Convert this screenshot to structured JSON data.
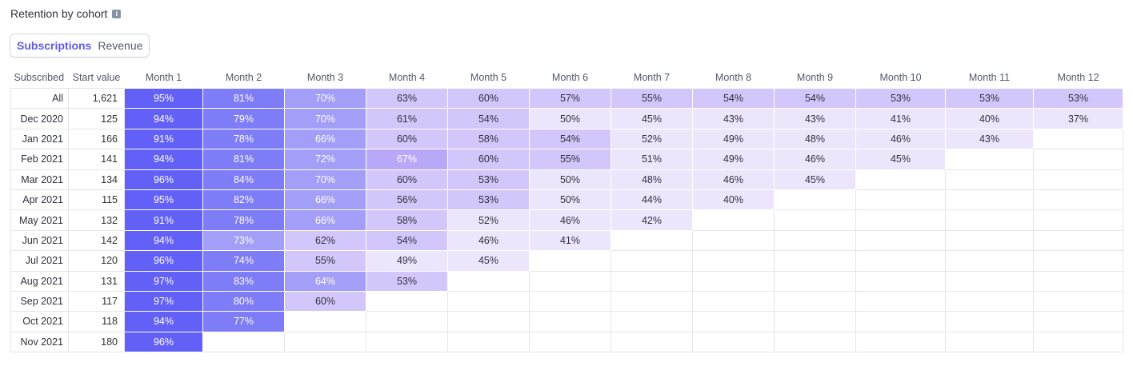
{
  "title": "Retention by cohort",
  "tabs": [
    "Subscriptions",
    "Revenue"
  ],
  "headers": [
    "Subscribed",
    "Start value",
    "Month 1",
    "Month 2",
    "Month 3",
    "Month 4",
    "Month 5",
    "Month 6",
    "Month 7",
    "Month 8",
    "Month 9",
    "Month 10",
    "Month 11",
    "Month 12"
  ],
  "colors": {
    "accent": "#5e5ce6",
    "l1": "#6360f8",
    "l2": "#7e7cf6",
    "l3": "#a39ef7",
    "l4": "#b9a8f7",
    "l5": "#d3c6fb",
    "l6": "#ece6fd"
  },
  "rows": [
    {
      "label": "All",
      "start": "1,621",
      "values": [
        "95%",
        "81%",
        "70%",
        "63%",
        "60%",
        "57%",
        "55%",
        "54%",
        "54%",
        "53%",
        "53%",
        "53%"
      ],
      "shades": [
        1,
        2,
        3,
        5,
        5,
        5,
        5,
        5,
        5,
        5,
        5,
        5
      ]
    },
    {
      "label": "Dec 2020",
      "start": "125",
      "values": [
        "94%",
        "79%",
        "70%",
        "61%",
        "54%",
        "50%",
        "45%",
        "43%",
        "43%",
        "41%",
        "40%",
        "37%"
      ],
      "shades": [
        1,
        2,
        3,
        5,
        5,
        6,
        6,
        6,
        6,
        6,
        6,
        6
      ]
    },
    {
      "label": "Jan 2021",
      "start": "166",
      "values": [
        "91%",
        "78%",
        "66%",
        "60%",
        "58%",
        "54%",
        "52%",
        "49%",
        "48%",
        "46%",
        "43%",
        ""
      ],
      "shades": [
        1,
        2,
        3,
        5,
        5,
        5,
        6,
        6,
        6,
        6,
        6,
        0
      ]
    },
    {
      "label": "Feb 2021",
      "start": "141",
      "values": [
        "94%",
        "81%",
        "72%",
        "67%",
        "60%",
        "55%",
        "51%",
        "49%",
        "46%",
        "45%",
        "",
        ""
      ],
      "shades": [
        1,
        2,
        3,
        4,
        5,
        5,
        6,
        6,
        6,
        6,
        0,
        0
      ]
    },
    {
      "label": "Mar 2021",
      "start": "134",
      "values": [
        "96%",
        "84%",
        "70%",
        "60%",
        "53%",
        "50%",
        "48%",
        "46%",
        "45%",
        "",
        "",
        ""
      ],
      "shades": [
        1,
        2,
        3,
        5,
        5,
        6,
        6,
        6,
        6,
        0,
        0,
        0
      ]
    },
    {
      "label": "Apr 2021",
      "start": "115",
      "values": [
        "95%",
        "82%",
        "66%",
        "56%",
        "53%",
        "50%",
        "44%",
        "40%",
        "",
        "",
        "",
        ""
      ],
      "shades": [
        1,
        2,
        3,
        5,
        5,
        6,
        6,
        6,
        0,
        0,
        0,
        0
      ]
    },
    {
      "label": "May 2021",
      "start": "132",
      "values": [
        "91%",
        "78%",
        "66%",
        "58%",
        "52%",
        "46%",
        "42%",
        "",
        "",
        "",
        "",
        ""
      ],
      "shades": [
        1,
        2,
        3,
        5,
        6,
        6,
        6,
        0,
        0,
        0,
        0,
        0
      ]
    },
    {
      "label": "Jun 2021",
      "start": "142",
      "values": [
        "94%",
        "73%",
        "62%",
        "54%",
        "46%",
        "41%",
        "",
        "",
        "",
        "",
        "",
        ""
      ],
      "shades": [
        1,
        3,
        5,
        5,
        6,
        6,
        0,
        0,
        0,
        0,
        0,
        0
      ]
    },
    {
      "label": "Jul 2021",
      "start": "120",
      "values": [
        "96%",
        "74%",
        "55%",
        "49%",
        "45%",
        "",
        "",
        "",
        "",
        "",
        "",
        ""
      ],
      "shades": [
        1,
        2,
        5,
        6,
        6,
        0,
        0,
        0,
        0,
        0,
        0,
        0
      ]
    },
    {
      "label": "Aug 2021",
      "start": "131",
      "values": [
        "97%",
        "83%",
        "64%",
        "53%",
        "",
        "",
        "",
        "",
        "",
        "",
        "",
        ""
      ],
      "shades": [
        1,
        2,
        3,
        5,
        0,
        0,
        0,
        0,
        0,
        0,
        0,
        0
      ]
    },
    {
      "label": "Sep 2021",
      "start": "117",
      "values": [
        "97%",
        "80%",
        "60%",
        "",
        "",
        "",
        "",
        "",
        "",
        "",
        "",
        ""
      ],
      "shades": [
        1,
        2,
        5,
        0,
        0,
        0,
        0,
        0,
        0,
        0,
        0,
        0
      ]
    },
    {
      "label": "Oct 2021",
      "start": "118",
      "values": [
        "94%",
        "77%",
        "",
        "",
        "",
        "",
        "",
        "",
        "",
        "",
        "",
        ""
      ],
      "shades": [
        1,
        2,
        0,
        0,
        0,
        0,
        0,
        0,
        0,
        0,
        0,
        0
      ]
    },
    {
      "label": "Nov 2021",
      "start": "180",
      "values": [
        "96%",
        "",
        "",
        "",
        "",
        "",
        "",
        "",
        "",
        "",
        "",
        ""
      ],
      "shades": [
        1,
        0,
        0,
        0,
        0,
        0,
        0,
        0,
        0,
        0,
        0,
        0
      ]
    }
  ]
}
